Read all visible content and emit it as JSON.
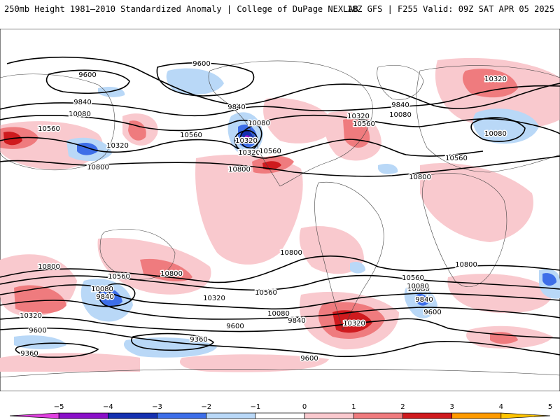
{
  "header": {
    "title_left": "250mb Height 1981–2010 Standardized Anomaly | College of DuPage NEXLAB",
    "title_right": "18Z GFS | F255 Valid: 09Z SAT APR 05 2025"
  },
  "contours": {
    "labels": [
      {
        "text": "9600"
      },
      {
        "text": "9600"
      },
      {
        "text": "9840"
      },
      {
        "text": "9840"
      },
      {
        "text": "10080"
      },
      {
        "text": "10080"
      },
      {
        "text": "10320"
      },
      {
        "text": "10560"
      },
      {
        "text": "10560"
      },
      {
        "text": "10320"
      },
      {
        "text": "10800"
      },
      {
        "text": "10800"
      },
      {
        "text": "10320"
      },
      {
        "text": "10560"
      },
      {
        "text": "9840"
      },
      {
        "text": "10080"
      },
      {
        "text": "10320"
      },
      {
        "text": "10080"
      },
      {
        "text": "10560"
      },
      {
        "text": "10800"
      },
      {
        "text": "10800"
      },
      {
        "text": "10560"
      },
      {
        "text": "10800"
      },
      {
        "text": "10560"
      },
      {
        "text": "10080"
      },
      {
        "text": "9840"
      },
      {
        "text": "10320"
      },
      {
        "text": "9600"
      },
      {
        "text": "10320"
      },
      {
        "text": "10800"
      },
      {
        "text": "10080"
      },
      {
        "text": "9840"
      },
      {
        "text": "9600"
      },
      {
        "text": "9360"
      },
      {
        "text": "9360"
      },
      {
        "text": "10560"
      },
      {
        "text": "10080"
      },
      {
        "text": "10320"
      },
      {
        "text": "10560"
      },
      {
        "text": "10080"
      },
      {
        "text": "9840"
      },
      {
        "text": "9600"
      },
      {
        "text": "9600"
      },
      {
        "text": "10320"
      },
      {
        "text": "10800"
      }
    ]
  },
  "colorbar": {
    "ticks": [
      "−5",
      "−4",
      "−3",
      "−2",
      "−1",
      "0",
      "1",
      "2",
      "3",
      "4",
      "5"
    ],
    "colors": [
      "#e040e0",
      "#8a10c8",
      "#1530b0",
      "#3d6ee8",
      "#b9d8f7",
      "#ffffff",
      "#f9c9ce",
      "#ef7b7e",
      "#cf1a1e",
      "#ff9a00",
      "#ffc400"
    ]
  }
}
